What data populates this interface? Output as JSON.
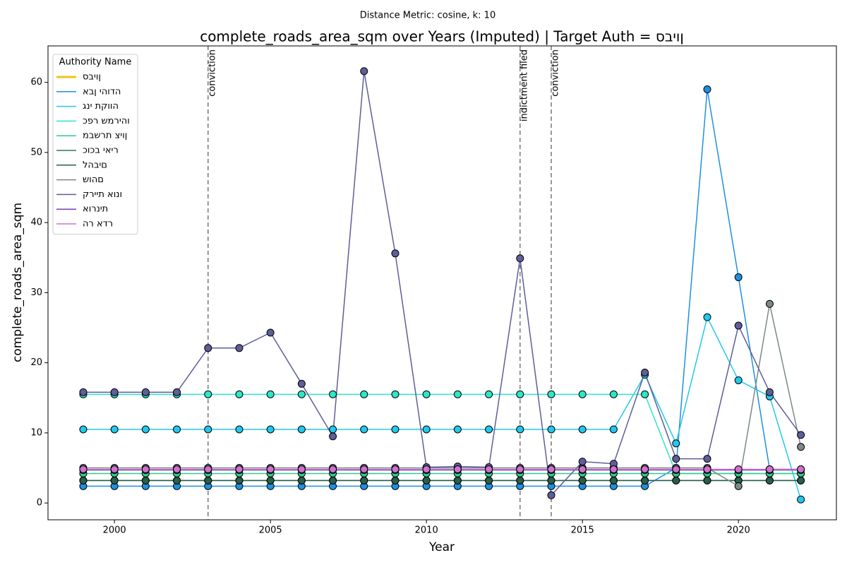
{
  "chart_data": {
    "type": "line",
    "subtitle": "Distance Metric: cosine, k: 10",
    "title": "complete_roads_area_sqm over Years (Imputed) | Target Auth = סביון",
    "x_label": "Year",
    "y_label": "complete_roads_area_sqm",
    "legend_title": "Authority Name",
    "legend": "upper left",
    "grid": false,
    "xlim": [
      1997.87,
      2023.14
    ],
    "ylim": [
      -2.4,
      65.2
    ],
    "xticks": [
      2000,
      2005,
      2010,
      2015,
      2020
    ],
    "yticks": [
      0,
      10,
      20,
      30,
      40,
      50,
      60
    ],
    "x": [
      1999,
      2000,
      2001,
      2002,
      2003,
      2004,
      2005,
      2006,
      2007,
      2008,
      2009,
      2010,
      2011,
      2012,
      2013,
      2014,
      2015,
      2016,
      2017,
      2018,
      2019,
      2020,
      2021,
      2022
    ],
    "annotations": [
      {
        "x": 2003,
        "text": "conviction"
      },
      {
        "x": 2013,
        "text": "indictment filed"
      },
      {
        "x": 2014,
        "text": "conviction"
      }
    ],
    "series": [
      {
        "name": "סביון",
        "color": "#f0c419",
        "linewidth": 3,
        "values": [
          null,
          null,
          null,
          null,
          null,
          null,
          null,
          null,
          null,
          null,
          null,
          null,
          null,
          null,
          null,
          null,
          null,
          null,
          null,
          null,
          null,
          null,
          null,
          null
        ]
      },
      {
        "name": "אבן יהודה",
        "color": "#1f8fe0",
        "values": [
          2.4,
          2.4,
          2.4,
          2.4,
          2.4,
          2.4,
          2.4,
          2.4,
          2.4,
          2.4,
          2.4,
          2.4,
          2.4,
          2.4,
          2.4,
          2.4,
          2.4,
          2.4,
          2.4,
          5.0,
          59.0,
          32.2,
          4.8,
          4.8
        ]
      },
      {
        "name": "גני תקווה",
        "color": "#22c8ec",
        "values": [
          10.5,
          10.5,
          10.5,
          10.5,
          10.5,
          10.5,
          10.5,
          10.5,
          10.5,
          10.5,
          10.5,
          10.5,
          10.5,
          10.5,
          10.5,
          10.5,
          10.5,
          10.5,
          18.3,
          8.5,
          26.5,
          17.5,
          15.2,
          0.5
        ]
      },
      {
        "name": "כפר שמריהו",
        "color": "#2ee6c8",
        "values": [
          15.5,
          15.5,
          15.5,
          15.5,
          15.5,
          15.5,
          15.5,
          15.5,
          15.5,
          15.5,
          15.5,
          15.5,
          15.5,
          15.5,
          15.5,
          15.5,
          15.5,
          15.5,
          15.5,
          4.2,
          4.2,
          4.2,
          4.2,
          4.2
        ]
      },
      {
        "name": "מבשרת ציון",
        "color": "#2ecc8f",
        "values": [
          4.2,
          4.2,
          4.2,
          4.2,
          4.2,
          4.2,
          4.2,
          4.2,
          4.2,
          4.2,
          4.2,
          4.2,
          4.2,
          4.2,
          4.2,
          4.2,
          4.2,
          4.2,
          4.2,
          4.2,
          4.2,
          4.2,
          4.2,
          4.2
        ]
      },
      {
        "name": "כוכב יאיר",
        "color": "#2e7a60",
        "values": [
          3.2,
          3.2,
          3.2,
          3.2,
          3.2,
          3.2,
          3.2,
          3.2,
          3.2,
          3.2,
          3.2,
          3.2,
          3.2,
          3.2,
          3.2,
          3.2,
          3.2,
          3.2,
          3.2,
          3.2,
          3.2,
          3.2,
          3.2,
          3.2
        ]
      },
      {
        "name": "להבים",
        "color": "#2a5e4a",
        "values": [
          3.2,
          3.2,
          3.2,
          3.2,
          3.2,
          3.2,
          3.2,
          3.2,
          3.2,
          3.2,
          3.2,
          3.2,
          3.2,
          3.2,
          3.2,
          3.2,
          3.2,
          3.2,
          3.2,
          3.2,
          3.2,
          3.2,
          3.2,
          3.2
        ]
      },
      {
        "name": "שוהם",
        "color": "#7a8a84",
        "values": [
          5.0,
          5.0,
          5.0,
          5.0,
          5.0,
          5.0,
          5.0,
          5.0,
          5.0,
          5.0,
          5.0,
          5.0,
          5.0,
          5.0,
          5.0,
          5.0,
          5.0,
          5.0,
          5.0,
          5.0,
          5.0,
          2.4,
          28.4,
          8.0
        ]
      },
      {
        "name": "קריית אונו",
        "color": "#5e5e9a",
        "values": [
          15.8,
          15.8,
          15.8,
          15.8,
          22.1,
          22.1,
          24.3,
          17.0,
          9.5,
          61.6,
          35.6,
          5.1,
          5.2,
          5.1,
          34.9,
          1.1,
          5.9,
          5.6,
          18.6,
          6.3,
          6.3,
          25.3,
          15.8,
          9.7
        ]
      },
      {
        "name": "אורנית",
        "color": "#7b3fb5",
        "values": [
          4.7,
          4.7,
          4.7,
          4.7,
          4.7,
          4.7,
          4.7,
          4.7,
          4.7,
          4.7,
          4.7,
          4.7,
          4.7,
          4.7,
          4.7,
          4.7,
          4.7,
          4.7,
          4.7,
          4.7,
          4.7,
          4.7,
          4.7,
          4.7
        ]
      },
      {
        "name": "הר אדר",
        "color": "#d070d0",
        "values": [
          4.8,
          4.8,
          4.8,
          4.8,
          4.8,
          4.8,
          4.8,
          4.8,
          4.8,
          4.8,
          4.8,
          4.8,
          4.8,
          4.8,
          4.8,
          4.8,
          4.8,
          4.8,
          4.8,
          4.8,
          4.8,
          4.8,
          4.8,
          4.8
        ]
      }
    ]
  }
}
